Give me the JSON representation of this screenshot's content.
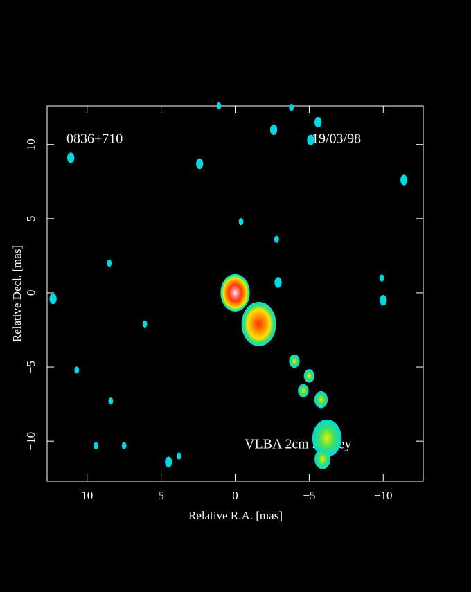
{
  "chart_data": {
    "type": "image",
    "x_label": "Relative R.A. [mas]",
    "y_label": "Relative Decl. [mas]",
    "annotations": [
      "0836+710",
      "19/03/98",
      "VLBA 2cm Survey"
    ],
    "xlim": [
      12.7,
      -12.7
    ],
    "ylim": [
      -12.7,
      12.6
    ],
    "xticks": [
      10,
      5,
      0,
      {
        "value": -5,
        "label": "−5"
      },
      {
        "value": -10,
        "label": "−10"
      }
    ],
    "yticks": [
      {
        "value": -10,
        "label": "−10"
      },
      {
        "value": -5,
        "label": "−5"
      },
      0,
      5,
      10
    ],
    "series": [
      {
        "x": [
          0,
          -1.6,
          -2.9,
          -4.0,
          -4.6,
          -5.0,
          -5.8,
          -6.2,
          -5.9,
          -0.4,
          -2.8,
          -2.6,
          4.5,
          11.1,
          2.4,
          7.5,
          8.4,
          9.4,
          10.7,
          12.3,
          8.5,
          6.1,
          3.8,
          -10.0,
          -9.9,
          -11.4,
          -5.1,
          -5.6,
          -3.8,
          1.1
        ],
        "y": [
          0,
          -2.1,
          0.7,
          -4.6,
          -6.6,
          -5.6,
          -7.2,
          -9.8,
          -11.2,
          4.8,
          3.6,
          11.0,
          -11.4,
          9.1,
          8.7,
          -10.3,
          -7.3,
          -10.3,
          -5.2,
          -0.4,
          2.0,
          -2.1,
          -11.0,
          -0.5,
          1.0,
          7.6,
          10.3,
          11.5,
          12.5,
          12.6
        ],
        "size": [
          1.1,
          1.3,
          0.3,
          0.4,
          0.4,
          0.4,
          0.5,
          1.1,
          0.6,
          0.2,
          0.2,
          0.3,
          0.3,
          0.3,
          0.3,
          0.2,
          0.2,
          0.2,
          0.2,
          0.3,
          0.2,
          0.2,
          0.2,
          0.3,
          0.2,
          0.3,
          0.3,
          0.3,
          0.2,
          0.2
        ]
      }
    ]
  }
}
